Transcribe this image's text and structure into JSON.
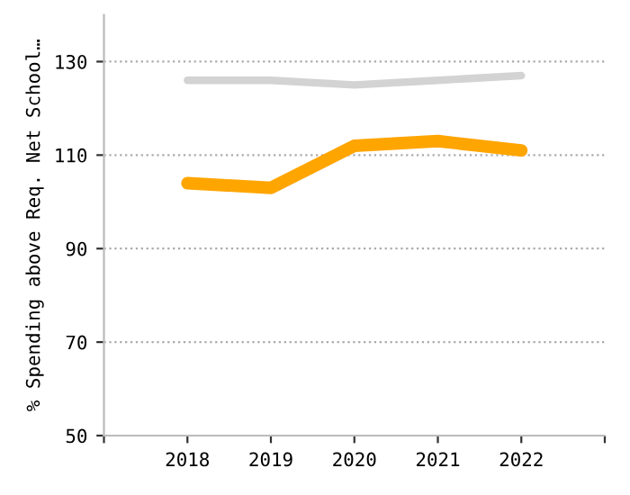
{
  "chart_data": {
    "type": "line",
    "ylabel": "% Spending above Req. Net School…",
    "x": [
      2018,
      2019,
      2020,
      2021,
      2022
    ],
    "series": [
      {
        "color": "#d3d3d3",
        "values": [
          126,
          126,
          125,
          126,
          127
        ]
      },
      {
        "color": "#ffa500",
        "values": [
          104,
          103,
          112,
          113,
          111
        ]
      }
    ],
    "xlim": [
      2017,
      2023
    ],
    "xticks": [
      {
        "value": 2017,
        "label": null
      },
      2018,
      2019,
      2020,
      2021,
      2022,
      {
        "value": 2023,
        "label": null
      }
    ],
    "ylim": [
      50,
      140
    ],
    "yticks": [
      50,
      70,
      90,
      110,
      130
    ],
    "grid": "y",
    "line_style": "solid",
    "marker": "none"
  }
}
